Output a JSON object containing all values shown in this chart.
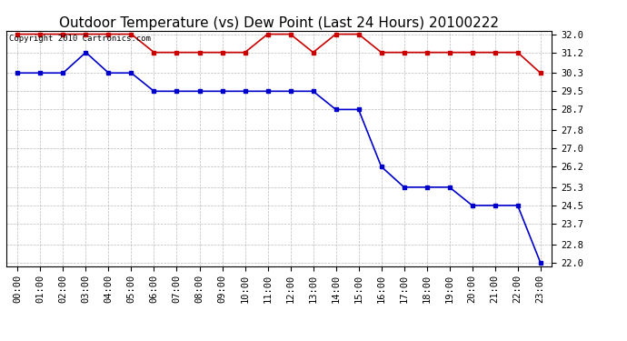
{
  "title": "Outdoor Temperature (vs) Dew Point (Last 24 Hours) 20100222",
  "copyright_text": "Copyright 2010 Cartronics.com",
  "x_labels": [
    "00:00",
    "01:00",
    "02:00",
    "03:00",
    "04:00",
    "05:00",
    "06:00",
    "07:00",
    "08:00",
    "09:00",
    "10:00",
    "11:00",
    "12:00",
    "13:00",
    "14:00",
    "15:00",
    "16:00",
    "17:00",
    "18:00",
    "19:00",
    "20:00",
    "21:00",
    "22:00",
    "23:00"
  ],
  "temp_data": [
    30.3,
    30.3,
    30.3,
    31.2,
    30.3,
    30.3,
    29.5,
    29.5,
    29.5,
    29.5,
    29.5,
    29.5,
    29.5,
    29.5,
    28.7,
    28.7,
    26.2,
    25.3,
    25.3,
    25.3,
    24.5,
    24.5,
    24.5,
    22.0
  ],
  "dew_data": [
    32.0,
    32.0,
    32.0,
    32.0,
    32.0,
    32.0,
    31.2,
    31.2,
    31.2,
    31.2,
    31.2,
    32.0,
    32.0,
    31.2,
    32.0,
    32.0,
    31.2,
    31.2,
    31.2,
    31.2,
    31.2,
    31.2,
    31.2,
    30.3
  ],
  "temp_color": "#0000cc",
  "dew_color": "#cc0000",
  "bg_color": "#ffffff",
  "plot_bg_color": "#ffffff",
  "grid_color": "#aaaaaa",
  "ylim_min": 22.0,
  "ylim_max": 32.0,
  "yticks": [
    22.0,
    22.8,
    23.7,
    24.5,
    25.3,
    26.2,
    27.0,
    27.8,
    28.7,
    29.5,
    30.3,
    31.2,
    32.0
  ],
  "title_fontsize": 11,
  "tick_fontsize": 7.5,
  "copyright_fontsize": 6.5,
  "marker": "s",
  "marker_size": 3,
  "line_width": 1.2
}
